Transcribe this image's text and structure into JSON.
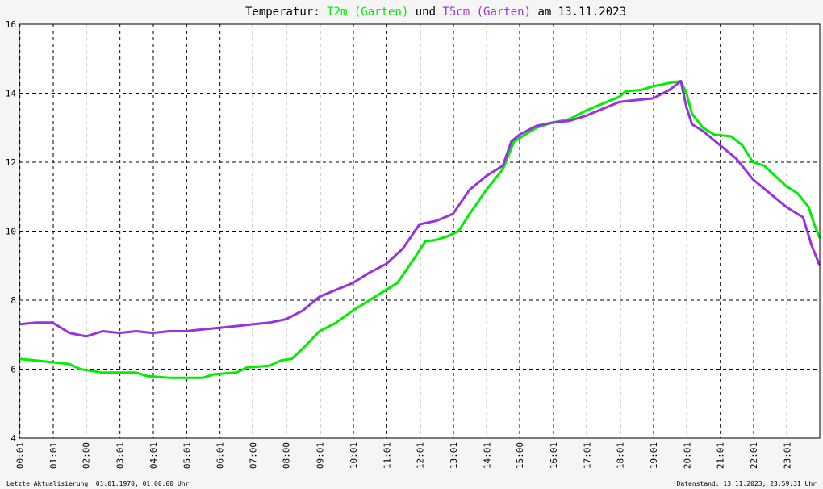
{
  "title": {
    "prefix": "Temperatur: ",
    "series1": "T2m (Garten)",
    "joiner": " und ",
    "series2": "T5cm (Garten)",
    "suffix": " am 13.11.2023"
  },
  "footer": {
    "left": "Letzte Aktualisierung: 01.01.1970, 01:00:00 Uhr",
    "right": "Datenstand: 13.11.2023, 23:59:31 Uhr"
  },
  "colors": {
    "series1": "#00ee00",
    "series2": "#9933dd",
    "grid": "#000000",
    "background": "#ffffff"
  },
  "chart_data": {
    "type": "line",
    "title": "Temperatur: T2m (Garten) und T5cm (Garten) am 13.11.2023",
    "ylim": [
      4,
      16
    ],
    "yticks": [
      "4",
      "6",
      "8",
      "10",
      "12",
      "14",
      "16"
    ],
    "xticks": [
      "00:01",
      "01:01",
      "02:00",
      "03:01",
      "04:01",
      "05:01",
      "06:01",
      "07:00",
      "08:00",
      "09:01",
      "10:01",
      "11:01",
      "12:01",
      "13:01",
      "14:01",
      "15:00",
      "16:01",
      "17:01",
      "18:01",
      "19:01",
      "20:01",
      "21:01",
      "22:01",
      "23:01"
    ],
    "grid": true,
    "series": [
      {
        "name": "T2m (Garten)",
        "color": "#00ee00",
        "points": [
          [
            "00:00",
            6.3
          ],
          [
            "00:30",
            6.25
          ],
          [
            "01:00",
            6.2
          ],
          [
            "01:30",
            6.15
          ],
          [
            "01:50",
            6.0
          ],
          [
            "02:30",
            5.9
          ],
          [
            "03:30",
            5.9
          ],
          [
            "03:50",
            5.8
          ],
          [
            "04:30",
            5.75
          ],
          [
            "05:30",
            5.75
          ],
          [
            "05:50",
            5.85
          ],
          [
            "06:30",
            5.9
          ],
          [
            "06:50",
            6.05
          ],
          [
            "07:30",
            6.1
          ],
          [
            "07:50",
            6.25
          ],
          [
            "08:10",
            6.3
          ],
          [
            "08:30",
            6.6
          ],
          [
            "09:00",
            7.1
          ],
          [
            "09:30",
            7.35
          ],
          [
            "10:00",
            7.7
          ],
          [
            "10:30",
            8.0
          ],
          [
            "11:00",
            8.3
          ],
          [
            "11:20",
            8.5
          ],
          [
            "11:50",
            9.2
          ],
          [
            "12:10",
            9.7
          ],
          [
            "12:30",
            9.75
          ],
          [
            "12:50",
            9.85
          ],
          [
            "13:10",
            10.0
          ],
          [
            "13:30",
            10.5
          ],
          [
            "14:00",
            11.2
          ],
          [
            "14:30",
            11.8
          ],
          [
            "14:50",
            12.6
          ],
          [
            "15:10",
            12.8
          ],
          [
            "15:30",
            13.0
          ],
          [
            "16:00",
            13.15
          ],
          [
            "16:30",
            13.25
          ],
          [
            "17:00",
            13.5
          ],
          [
            "17:30",
            13.7
          ],
          [
            "18:00",
            13.9
          ],
          [
            "18:10",
            14.05
          ],
          [
            "18:40",
            14.1
          ],
          [
            "19:00",
            14.2
          ],
          [
            "19:30",
            14.3
          ],
          [
            "19:50",
            14.35
          ],
          [
            "20:00",
            14.0
          ],
          [
            "20:10",
            13.4
          ],
          [
            "20:30",
            13.0
          ],
          [
            "20:50",
            12.8
          ],
          [
            "21:20",
            12.75
          ],
          [
            "21:40",
            12.5
          ],
          [
            "22:00",
            12.0
          ],
          [
            "22:20",
            11.9
          ],
          [
            "22:40",
            11.6
          ],
          [
            "23:00",
            11.3
          ],
          [
            "23:20",
            11.1
          ],
          [
            "23:40",
            10.7
          ],
          [
            "23:50",
            10.2
          ],
          [
            "24:00",
            9.8
          ]
        ]
      },
      {
        "name": "T5cm (Garten)",
        "color": "#9933dd",
        "points": [
          [
            "00:00",
            7.3
          ],
          [
            "00:30",
            7.35
          ],
          [
            "01:00",
            7.35
          ],
          [
            "01:30",
            7.05
          ],
          [
            "02:00",
            6.95
          ],
          [
            "02:30",
            7.1
          ],
          [
            "03:00",
            7.05
          ],
          [
            "03:30",
            7.1
          ],
          [
            "04:00",
            7.05
          ],
          [
            "04:30",
            7.1
          ],
          [
            "05:00",
            7.1
          ],
          [
            "05:30",
            7.15
          ],
          [
            "06:00",
            7.2
          ],
          [
            "06:30",
            7.25
          ],
          [
            "07:00",
            7.3
          ],
          [
            "07:30",
            7.35
          ],
          [
            "08:00",
            7.45
          ],
          [
            "08:30",
            7.7
          ],
          [
            "09:00",
            8.1
          ],
          [
            "09:30",
            8.3
          ],
          [
            "10:00",
            8.5
          ],
          [
            "10:30",
            8.8
          ],
          [
            "11:00",
            9.05
          ],
          [
            "11:30",
            9.5
          ],
          [
            "12:00",
            10.2
          ],
          [
            "12:30",
            10.3
          ],
          [
            "13:00",
            10.5
          ],
          [
            "13:30",
            11.2
          ],
          [
            "14:00",
            11.6
          ],
          [
            "14:30",
            11.9
          ],
          [
            "14:45",
            12.6
          ],
          [
            "15:00",
            12.8
          ],
          [
            "15:30",
            13.05
          ],
          [
            "16:00",
            13.15
          ],
          [
            "16:30",
            13.2
          ],
          [
            "17:00",
            13.35
          ],
          [
            "17:30",
            13.55
          ],
          [
            "18:00",
            13.75
          ],
          [
            "18:30",
            13.8
          ],
          [
            "19:00",
            13.85
          ],
          [
            "19:30",
            14.1
          ],
          [
            "19:50",
            14.35
          ],
          [
            "20:00",
            13.6
          ],
          [
            "20:10",
            13.1
          ],
          [
            "20:30",
            12.9
          ],
          [
            "21:00",
            12.5
          ],
          [
            "21:30",
            12.1
          ],
          [
            "22:00",
            11.5
          ],
          [
            "22:30",
            11.1
          ],
          [
            "23:00",
            10.7
          ],
          [
            "23:30",
            10.4
          ],
          [
            "23:45",
            9.6
          ],
          [
            "24:00",
            9.0
          ]
        ]
      }
    ]
  }
}
